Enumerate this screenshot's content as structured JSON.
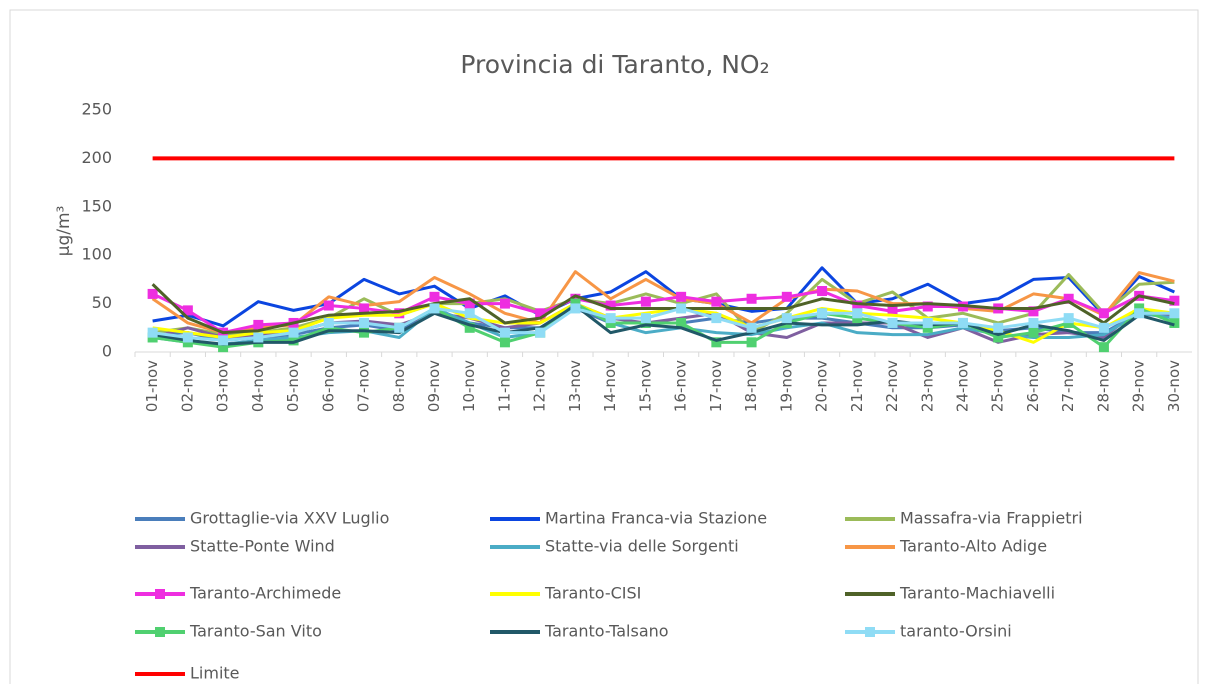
{
  "chart_data": {
    "type": "line",
    "title": "Provincia di Taranto, NO₂",
    "y_label": "µg/m³",
    "categories": [
      "01-nov",
      "02-nov",
      "03-nov",
      "04-nov",
      "05-nov",
      "06-nov",
      "07-nov",
      "08-nov",
      "09-nov",
      "10-nov",
      "11-nov",
      "12-nov",
      "13-nov",
      "14-nov",
      "15-nov",
      "16-nov",
      "17-nov",
      "18-nov",
      "19-nov",
      "20-nov",
      "21-nov",
      "22-nov",
      "23-nov",
      "24-nov",
      "25-nov",
      "26-nov",
      "27-nov",
      "28-nov",
      "29-nov",
      "30-nov"
    ],
    "ylim": [
      0,
      250
    ],
    "yticks": [
      0,
      50,
      100,
      150,
      200,
      250
    ],
    "series": [
      {
        "name": "Grottaglie-via XXV Luglio",
        "color": "#4a7ebb",
        "values": [
          18,
          20,
          12,
          15,
          18,
          25,
          28,
          22,
          45,
          30,
          25,
          25,
          45,
          30,
          30,
          30,
          35,
          30,
          35,
          35,
          30,
          25,
          25,
          28,
          22,
          25,
          20,
          20,
          40,
          38
        ]
      },
      {
        "name": "Martina Franca-via Stazione",
        "color": "#0b45e0",
        "values": [
          32,
          38,
          27,
          52,
          43,
          50,
          75,
          60,
          68,
          45,
          58,
          38,
          55,
          62,
          83,
          55,
          50,
          42,
          45,
          87,
          50,
          55,
          70,
          50,
          55,
          75,
          77,
          38,
          78,
          62
        ]
      },
      {
        "name": "Massafra-via Frappietri",
        "color": "#9bbb59",
        "values": [
          20,
          25,
          18,
          20,
          25,
          35,
          55,
          38,
          50,
          50,
          55,
          42,
          55,
          50,
          60,
          50,
          60,
          20,
          40,
          75,
          50,
          62,
          35,
          40,
          30,
          40,
          80,
          40,
          70,
          72
        ]
      },
      {
        "name": "Statte-Ponte Wind",
        "color": "#7f5fa0",
        "values": [
          15,
          25,
          15,
          18,
          20,
          30,
          32,
          28,
          40,
          35,
          25,
          30,
          50,
          35,
          30,
          35,
          40,
          20,
          15,
          30,
          30,
          30,
          15,
          25,
          10,
          18,
          20,
          15,
          45,
          35
        ]
      },
      {
        "name": "Statte-via delle Sorgenti",
        "color": "#4bacc6",
        "values": [
          15,
          10,
          8,
          12,
          15,
          20,
          22,
          15,
          45,
          30,
          15,
          20,
          50,
          30,
          20,
          25,
          20,
          18,
          25,
          30,
          20,
          18,
          18,
          25,
          18,
          15,
          15,
          18,
          40,
          35
        ]
      },
      {
        "name": "Taranto-Alto Adige",
        "color": "#f79646",
        "values": [
          55,
          30,
          20,
          25,
          28,
          57,
          48,
          52,
          77,
          60,
          40,
          30,
          83,
          55,
          75,
          55,
          50,
          30,
          55,
          65,
          63,
          50,
          50,
          45,
          42,
          60,
          55,
          38,
          82,
          73
        ]
      },
      {
        "name": "Taranto-Archimede",
        "color": "#ee2ee0",
        "marker": "square",
        "values": [
          60,
          43,
          20,
          28,
          30,
          48,
          45,
          40,
          57,
          50,
          50,
          40,
          55,
          48,
          52,
          57,
          52,
          55,
          57,
          63,
          48,
          42,
          47,
          47,
          45,
          42,
          55,
          40,
          58,
          53
        ]
      },
      {
        "name": "Taranto-CISI",
        "color": "#ffff00",
        "values": [
          25,
          20,
          15,
          20,
          22,
          35,
          38,
          38,
          50,
          35,
          30,
          30,
          50,
          35,
          40,
          45,
          40,
          25,
          35,
          45,
          40,
          38,
          35,
          30,
          22,
          10,
          30,
          25,
          45,
          40
        ]
      },
      {
        "name": "Taranto-Machiavelli",
        "color": "#4f6228",
        "values": [
          70,
          35,
          20,
          22,
          30,
          38,
          40,
          42,
          50,
          55,
          30,
          35,
          58,
          45,
          45,
          45,
          45,
          45,
          45,
          55,
          50,
          48,
          50,
          48,
          45,
          45,
          52,
          30,
          58,
          50
        ]
      },
      {
        "name": "Taranto-San Vito",
        "color": "#50d070",
        "marker": "square",
        "values": [
          15,
          10,
          5,
          10,
          12,
          25,
          20,
          25,
          45,
          25,
          10,
          20,
          50,
          30,
          30,
          30,
          10,
          10,
          30,
          40,
          35,
          30,
          25,
          30,
          15,
          20,
          30,
          5,
          45,
          30
        ]
      },
      {
        "name": "Taranto-Talsano",
        "color": "#215868",
        "values": [
          18,
          12,
          8,
          10,
          10,
          22,
          22,
          20,
          40,
          28,
          20,
          25,
          48,
          20,
          28,
          25,
          12,
          20,
          30,
          28,
          28,
          32,
          28,
          30,
          18,
          28,
          22,
          12,
          38,
          28
        ]
      },
      {
        "name": "taranto-Orsini",
        "color": "#8fdcf5",
        "marker": "square",
        "values": [
          20,
          15,
          12,
          15,
          20,
          30,
          30,
          25,
          45,
          40,
          20,
          20,
          45,
          35,
          35,
          45,
          35,
          25,
          35,
          40,
          40,
          30,
          30,
          30,
          25,
          30,
          35,
          25,
          40,
          40
        ]
      },
      {
        "name": "Limite",
        "color": "#ff0000",
        "values": [
          200,
          200,
          200,
          200,
          200,
          200,
          200,
          200,
          200,
          200,
          200,
          200,
          200,
          200,
          200,
          200,
          200,
          200,
          200,
          200,
          200,
          200,
          200,
          200,
          200,
          200,
          200,
          200,
          200,
          200
        ]
      }
    ]
  }
}
